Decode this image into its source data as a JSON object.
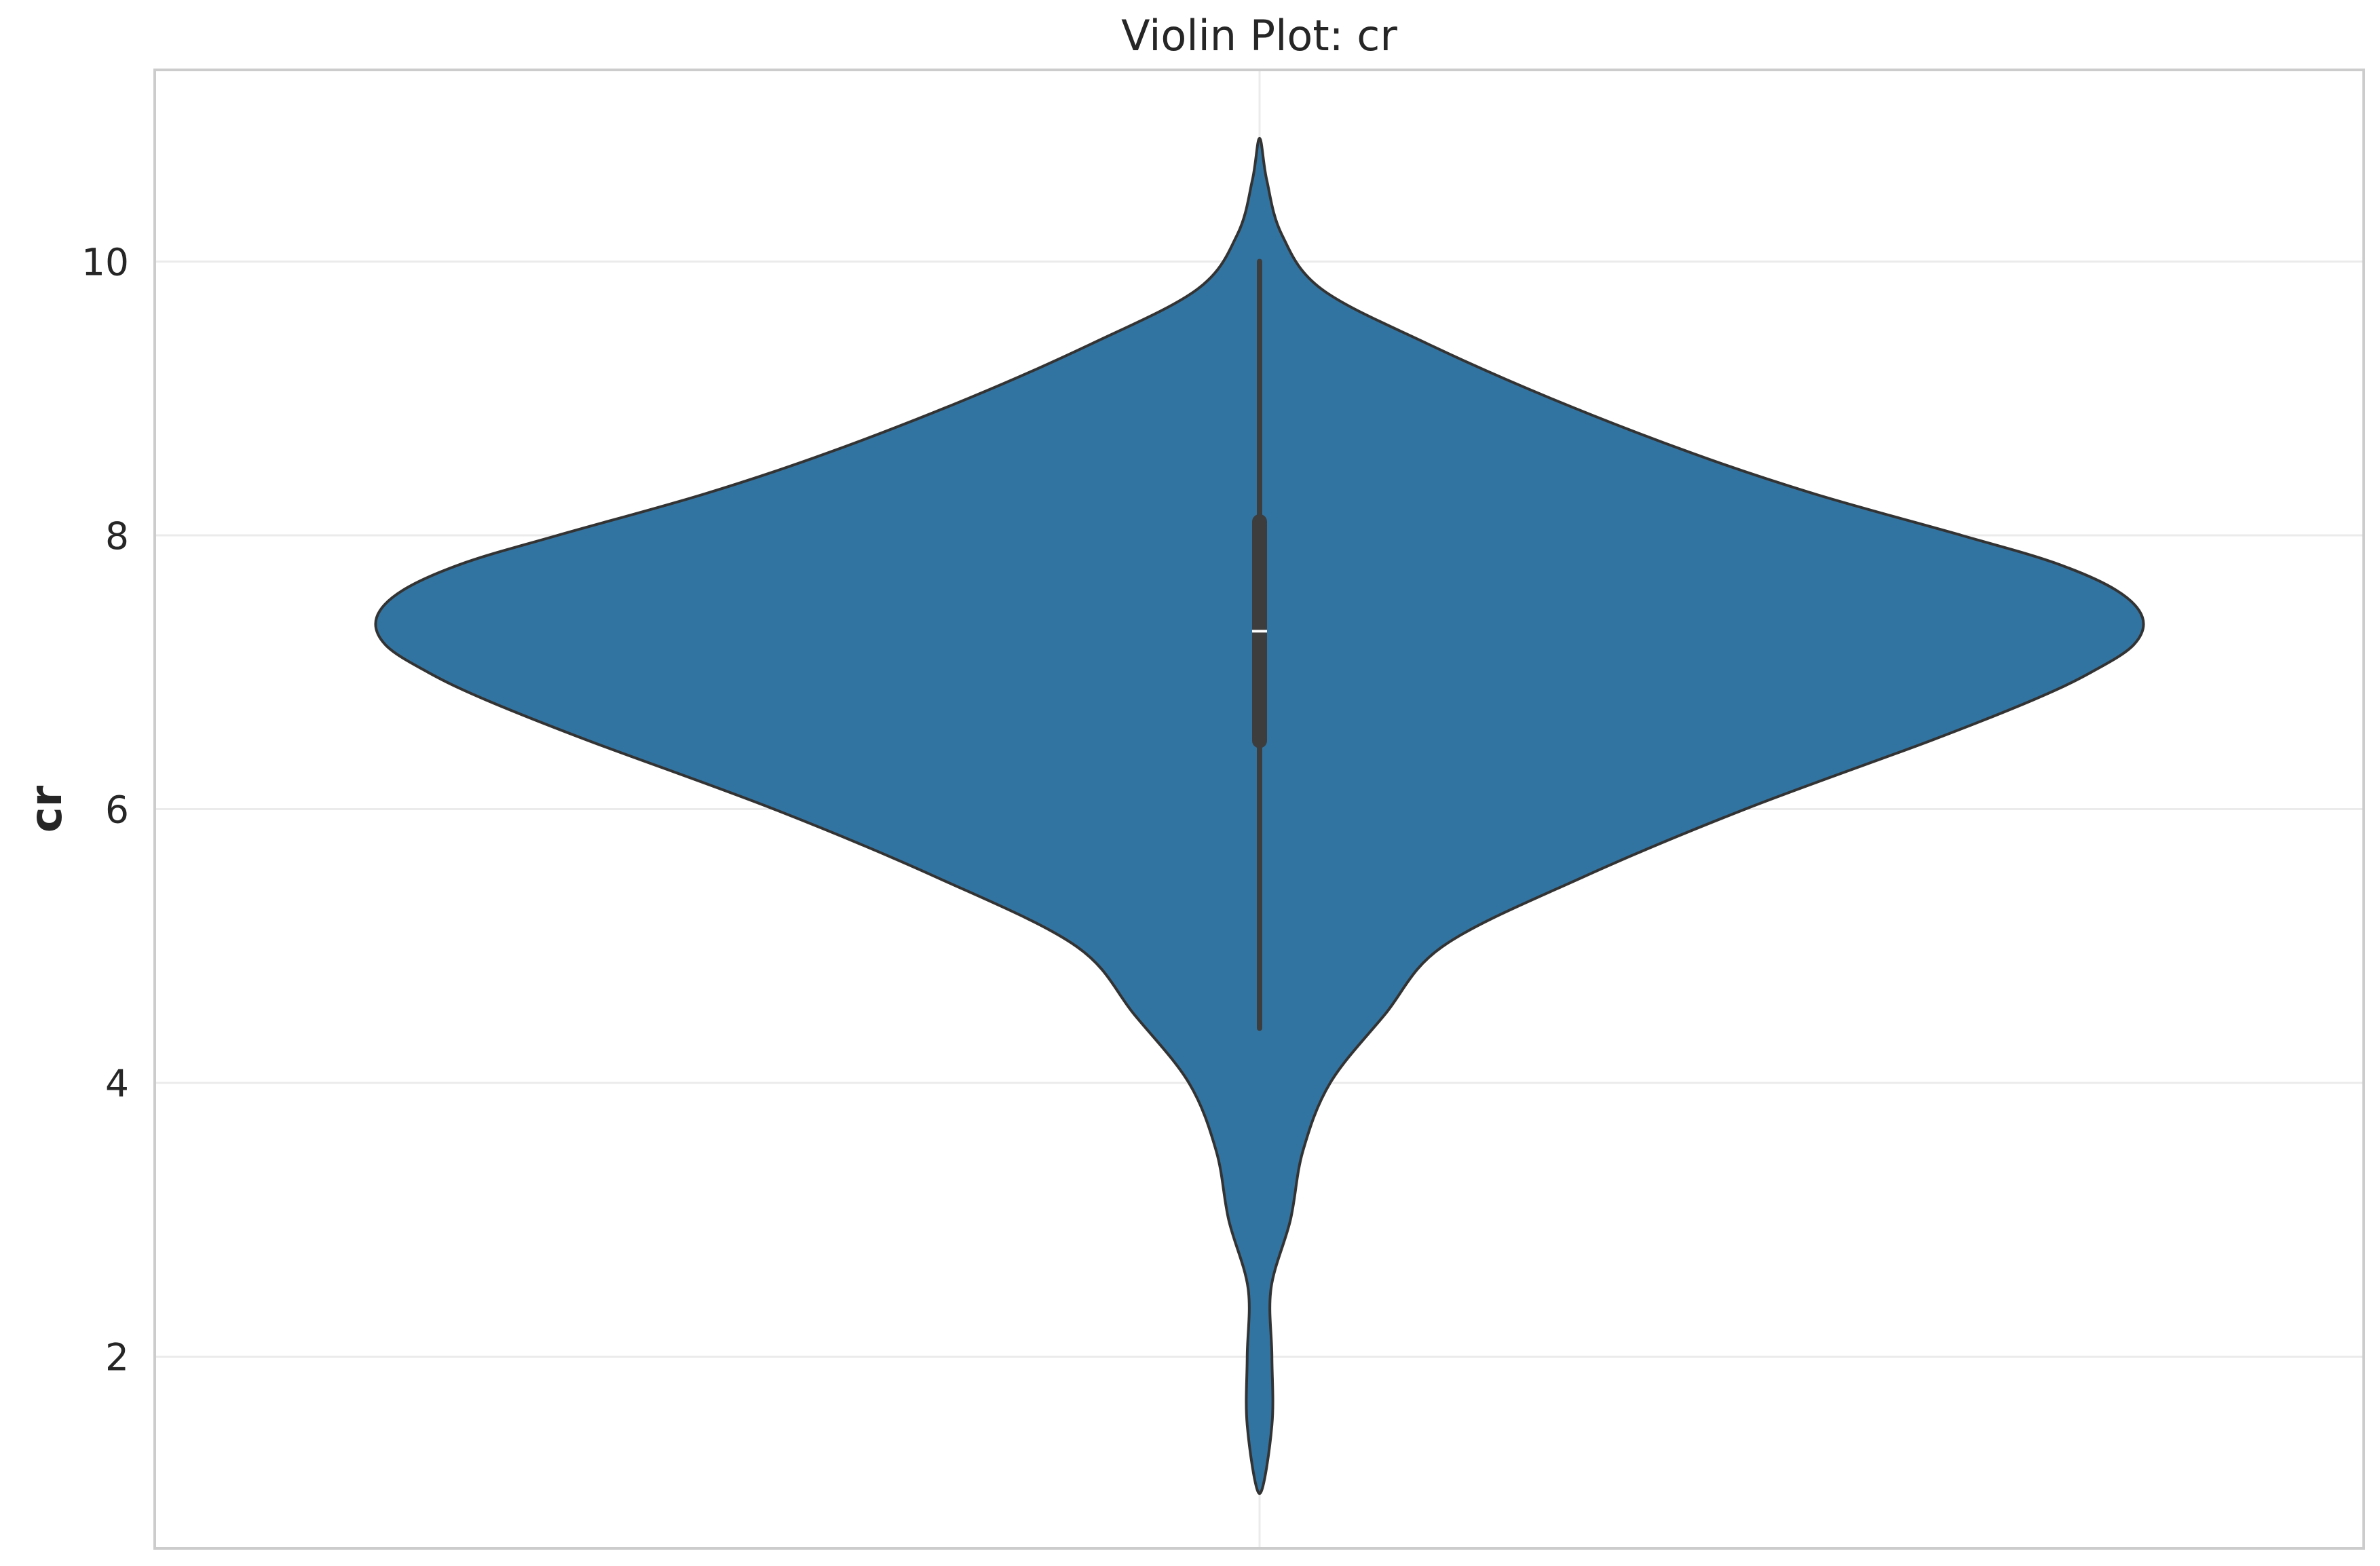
{
  "chart_data": {
    "type": "violin",
    "title": "Violin Plot: cr",
    "xlabel": "",
    "ylabel": "cr",
    "ylim": [
      0.6,
      11.4
    ],
    "yticks": [
      "2",
      "4",
      "6",
      "8",
      "10"
    ],
    "grid": true,
    "color": "#3274a1",
    "edge_color": "#333333",
    "series": [
      {
        "values_summary": {
          "min": 4.4,
          "q1": 6.5,
          "median": 7.3,
          "q3": 8.1,
          "max": 10.0
        },
        "kde_extent": [
          1.0,
          10.9
        ],
        "density_profile": {
          "y": [
            1.0,
            1.5,
            2.0,
            2.5,
            3.0,
            3.5,
            4.0,
            4.5,
            5.0,
            5.5,
            6.0,
            6.5,
            6.8,
            7.0,
            7.2,
            7.4,
            7.6,
            7.8,
            8.0,
            8.3,
            8.6,
            9.0,
            9.4,
            9.8,
            10.2,
            10.6,
            10.9
          ],
          "relative_width": [
            0.0,
            0.014,
            0.014,
            0.013,
            0.035,
            0.049,
            0.08,
            0.142,
            0.208,
            0.365,
            0.55,
            0.76,
            0.877,
            0.942,
            0.99,
            1.0,
            0.97,
            0.9,
            0.795,
            0.63,
            0.49,
            0.33,
            0.19,
            0.07,
            0.025,
            0.008,
            0.0
          ]
        }
      }
    ]
  }
}
